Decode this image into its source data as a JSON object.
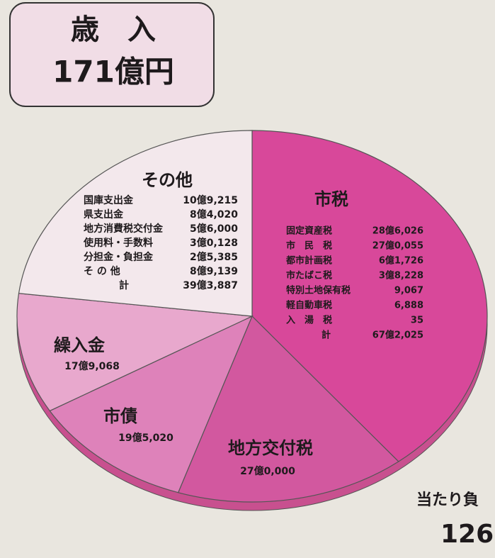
{
  "header": {
    "title": "歳　入",
    "total": "171億円"
  },
  "chart_data": {
    "type": "pie",
    "categories": [
      "市税",
      "地方交付税",
      "市債",
      "繰入金",
      "その他"
    ],
    "values": [
      672025,
      270000,
      195020,
      179068,
      393887
    ],
    "value_labels": [
      "67億2,025",
      "27億0,000",
      "19億5,020",
      "17億9,068",
      "39億3,887"
    ],
    "colors": [
      "#d8489a",
      "#d2589f",
      "#de82ba",
      "#e8a8cd",
      "#f3e8ec"
    ],
    "breakdowns": [
      [
        [
          "固定資産税",
          "28億6,026"
        ],
        [
          "市　民　税",
          "27億0,055"
        ],
        [
          "都市計画税",
          "6億1,726"
        ],
        [
          "市たばこ税",
          "3億8,228"
        ],
        [
          "特別土地保有税",
          "9,067"
        ],
        [
          "軽自動車税",
          "6,888"
        ],
        [
          "入　湯　税",
          "35"
        ],
        [
          "計",
          "67億2,025"
        ]
      ],
      null,
      null,
      null,
      [
        [
          "国庫支出金",
          "10億9,215"
        ],
        [
          "県支出金",
          "8億4,020"
        ],
        [
          "地方消費税交付金",
          "5億6,000"
        ],
        [
          "使用料・手数料",
          "3億0,128"
        ],
        [
          "分担金・負担金",
          "2億5,385"
        ],
        [
          "そ の 他",
          "8億9,139"
        ],
        [
          "計",
          "39億3,887"
        ]
      ]
    ]
  },
  "footer": {
    "line1": "当たり負",
    "line2": "126"
  }
}
